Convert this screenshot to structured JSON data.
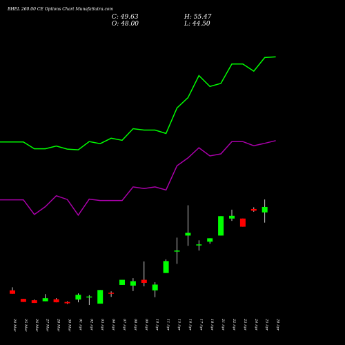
{
  "title": "BHEL 260.00 CE Options Chart MunafaSutra.com",
  "ohlc": {
    "close": "C: 49.63",
    "open": "O: 48.00",
    "high": "H: 55.47",
    "low": "L: 44.50"
  },
  "colors": {
    "up": "#00ff00",
    "down": "#ff0000",
    "wick": "#ffffff",
    "upper_band": "#00ff00",
    "lower_band": "#aa00aa",
    "background": "#000000"
  },
  "chart_data": {
    "type": "candlestick",
    "categories": [
      "20 Mar",
      "25 Mar",
      "26 Mar",
      "27 Mar",
      "28 Mar",
      "30 Mar",
      "01 Apr",
      "02 Apr",
      "03 Apr",
      "04 Apr",
      "07 Apr",
      "08 Apr",
      "09 Apr",
      "10 Apr",
      "11 Apr",
      "15 Apr",
      "16 Apr",
      "17 Apr",
      "18 Apr",
      "21 Apr",
      "22 Apr",
      "23 Apr",
      "24 Apr",
      "25 Apr",
      "28 Apr"
    ],
    "candles": [
      {
        "open": 4.9,
        "high": 5.8,
        "low": 3.9,
        "close": 3.9
      },
      {
        "open": 2.4,
        "high": 2.4,
        "low": 1.5,
        "close": 1.5
      },
      {
        "open": 2.0,
        "high": 2.2,
        "low": 1.2,
        "close": 1.2
      },
      {
        "open": 1.7,
        "high": 3.8,
        "low": 1.7,
        "close": 2.6
      },
      {
        "open": 2.3,
        "high": 2.6,
        "low": 1.4,
        "close": 1.4
      },
      {
        "open": 1.5,
        "high": 1.7,
        "low": 0.9,
        "close": 1.1
      },
      {
        "open": 2.2,
        "high": 4.0,
        "low": 1.4,
        "close": 3.6
      },
      {
        "open": 3.0,
        "high": 3.5,
        "low": 0.6,
        "close": 3.1
      },
      {
        "open": 1.0,
        "high": 5.0,
        "low": 1.0,
        "close": 5.0
      },
      {
        "open": 4.2,
        "high": 4.6,
        "low": 3.0,
        "close": 3.9
      },
      {
        "open": 6.5,
        "high": 8.0,
        "low": 6.5,
        "close": 8.0
      },
      {
        "open": 6.3,
        "high": 8.5,
        "low": 4.7,
        "close": 7.6
      },
      {
        "open": 8.0,
        "high": 13.4,
        "low": 6.1,
        "close": 7.1
      },
      {
        "open": 4.9,
        "high": 7.3,
        "low": 2.9,
        "close": 6.6
      },
      {
        "open": 10.0,
        "high": 14.0,
        "low": 10.0,
        "close": 13.5
      },
      {
        "open": 16.4,
        "high": 20.4,
        "low": 12.7,
        "close": 16.6
      },
      {
        "open": 21.0,
        "high": 29.9,
        "low": 18.0,
        "close": 21.8
      },
      {
        "open": 18.1,
        "high": 19.6,
        "low": 16.6,
        "close": 18.4
      },
      {
        "open": 19.2,
        "high": 20.2,
        "low": 18.6,
        "close": 20.2
      },
      {
        "open": 21.0,
        "high": 26.7,
        "low": 21.0,
        "close": 26.7
      },
      {
        "open": 26.0,
        "high": 28.6,
        "low": 25.3,
        "close": 26.8
      },
      {
        "open": 26.0,
        "high": 26.0,
        "low": 23.6,
        "close": 23.6
      },
      {
        "open": 28.8,
        "high": 29.3,
        "low": 28.0,
        "close": 28.3
      },
      {
        "open": 27.8,
        "high": 31.6,
        "low": 24.8,
        "close": 29.4
      },
      {
        "open": 0,
        "high": 0,
        "low": 0,
        "close": 0
      }
    ],
    "upper_band": [
      48.5,
      48.5,
      46.5,
      46.5,
      47.3,
      46.4,
      46.2,
      48.6,
      48.0,
      49.6,
      49.0,
      52.4,
      52.0,
      52.0,
      51.0,
      58.5,
      61.5,
      68.0,
      64.8,
      65.7,
      71.4,
      71.4,
      69.3,
      73.3,
      73.5
    ],
    "lower_band": [
      31.5,
      31.5,
      27.2,
      29.5,
      32.7,
      31.6,
      27.0,
      31.7,
      31.3,
      31.3,
      31.3,
      35.3,
      34.8,
      35.3,
      34.4,
      41.5,
      43.8,
      46.8,
      44.4,
      45.0,
      48.6,
      48.6,
      47.4,
      48.1,
      48.9
    ],
    "ylim": [
      0,
      75
    ]
  }
}
